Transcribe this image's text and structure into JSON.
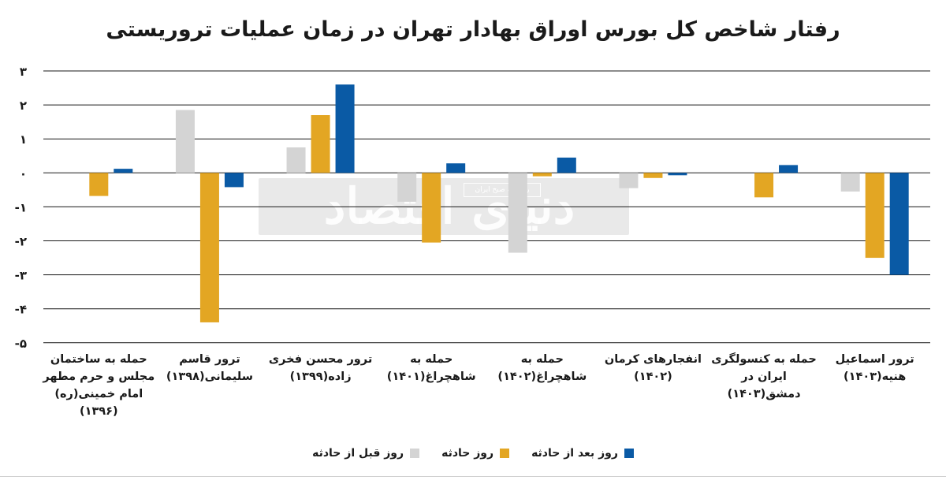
{
  "colors": {
    "before": "#d4d4d4",
    "on": "#e3a623",
    "after": "#0a5aa5"
  },
  "watermark": {
    "logo_text": "دنیای اقتصاد",
    "sub_text": "روزنامه صبح ایران"
  },
  "chart_data": {
    "type": "bar",
    "title": "رفتار شاخص کل بورس اوراق بهادار تهران در زمان عملیات تروریستی",
    "categories": [
      "حمله به ساختمان\nمجلس و حرم مطهر\nامام خمینی(ره)\n(۱۳۹۶)",
      "ترور قاسم\nسلیمانی(۱۳۹۸)",
      "ترور محسن فخری\nزاده(۱۳۹۹)",
      "حمله به\nشاهچراغ(۱۴۰۱)",
      "حمله به\nشاهچراغ(۱۴۰۲)",
      "انفجارهای کرمان\n(۱۴۰۲)",
      "حمله به کنسولگری\nایران در\nدمشق(۱۴۰۳)",
      "ترور اسماعیل\nهنیه(۱۴۰۳)"
    ],
    "series": [
      {
        "name": "روز قبل از حادثه",
        "values": [
          0.0,
          1.85,
          0.75,
          -0.85,
          -2.35,
          -0.45,
          0.0,
          -0.55
        ]
      },
      {
        "name": "روز حادثه",
        "values": [
          -0.68,
          -4.4,
          1.7,
          -2.05,
          -0.1,
          -0.15,
          -0.72,
          -2.5
        ]
      },
      {
        "name": "روز بعد از حادثه",
        "values": [
          0.12,
          -0.42,
          2.6,
          0.28,
          0.45,
          -0.07,
          0.23,
          -3.0
        ]
      }
    ],
    "y_ticks": [
      3,
      2,
      1,
      0,
      -1,
      -2,
      -3,
      -4,
      -5
    ],
    "y_tick_labels": [
      "۳",
      "۲",
      "۱",
      "۰",
      "-۱",
      "-۲",
      "-۳",
      "-۴",
      "-۵"
    ],
    "ylim": [
      -5,
      3
    ],
    "grid": true,
    "legend_position": "bottom"
  }
}
